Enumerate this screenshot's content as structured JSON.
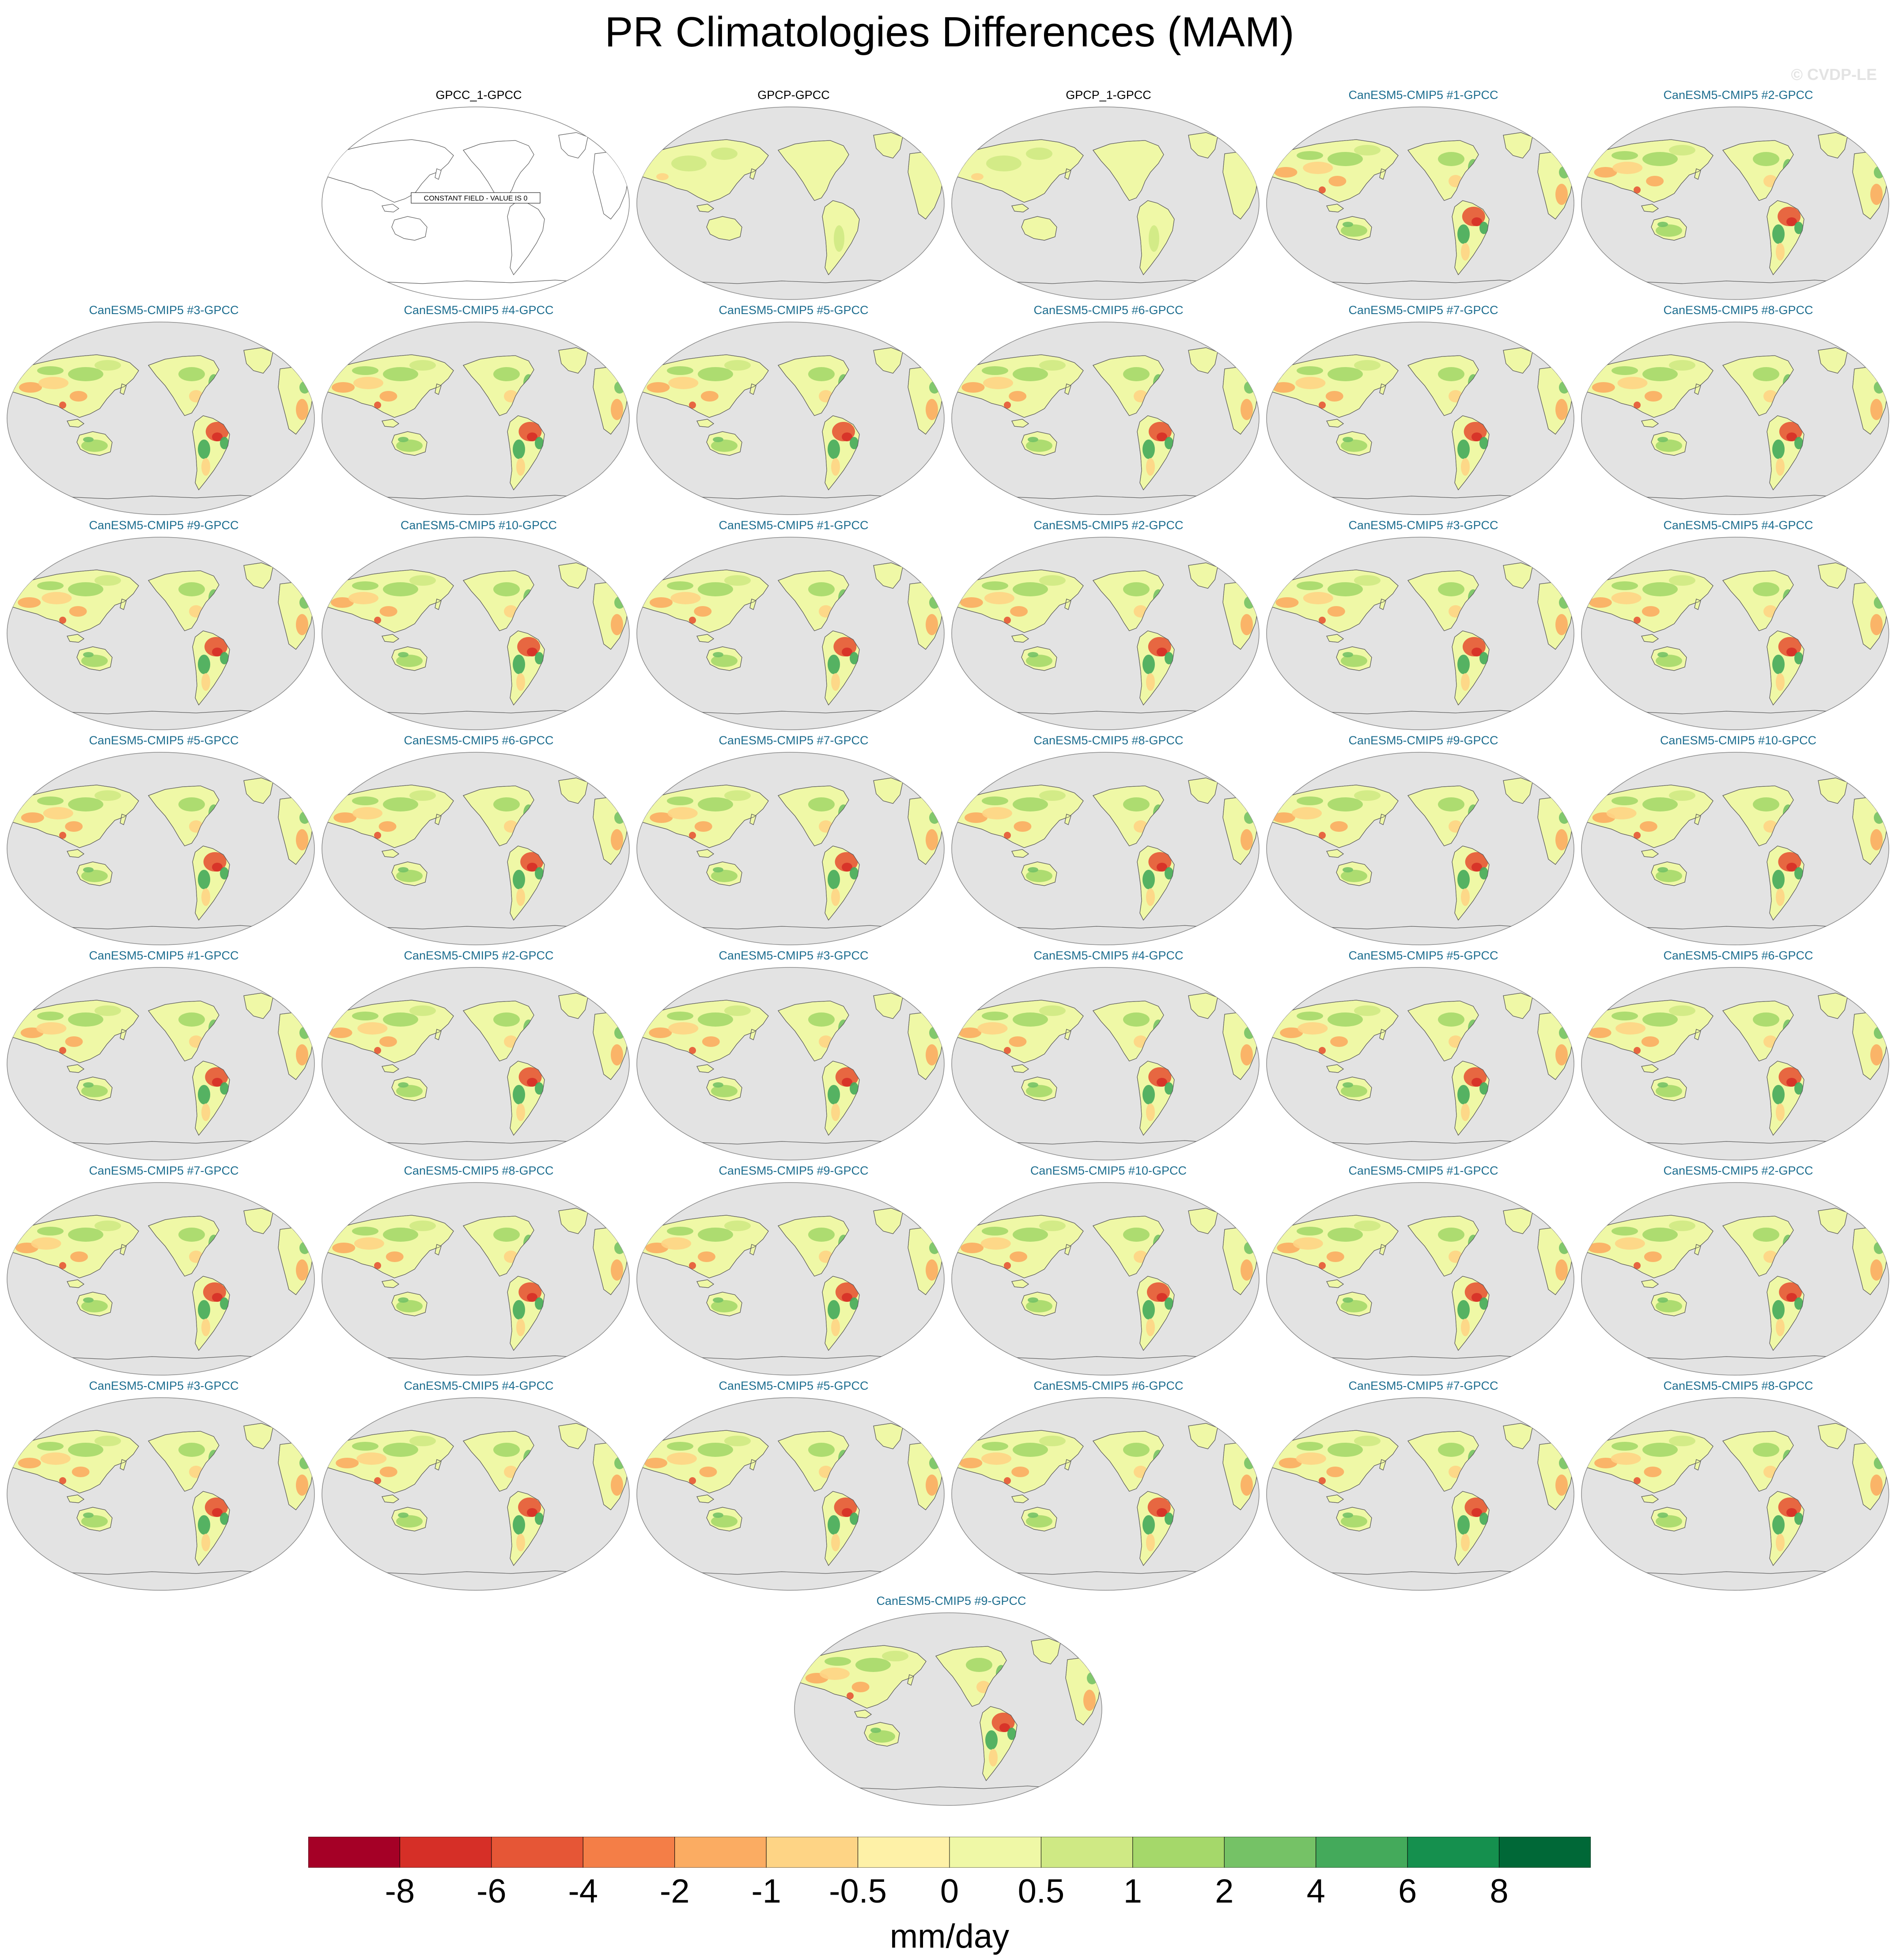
{
  "title": "PR Climatologies Differences (MAM)",
  "credit": "© CVDP-LE",
  "colors": {
    "obs_title": "#000000",
    "model_title": "#1c6d8f",
    "ocean": "#e3e3e3",
    "coast": "#5a5a5a"
  },
  "chart_data": {
    "type": "heatmap",
    "projection": "Robinson, Pacific-centered",
    "panels": [
      {
        "title": "GPCC_1-GPCC",
        "kind": "obs",
        "constant_note": "CONSTANT FIELD - VALUE IS 0"
      },
      {
        "title": "GPCP-GPCC",
        "kind": "obs"
      },
      {
        "title": "GPCP_1-GPCC",
        "kind": "obs"
      },
      {
        "title": "CanESM5-CMIP5 #1-GPCC",
        "kind": "model"
      },
      {
        "title": "CanESM5-CMIP5 #2-GPCC",
        "kind": "model"
      },
      {
        "title": "CanESM5-CMIP5 #3-GPCC",
        "kind": "model"
      },
      {
        "title": "CanESM5-CMIP5 #4-GPCC",
        "kind": "model"
      },
      {
        "title": "CanESM5-CMIP5 #5-GPCC",
        "kind": "model"
      },
      {
        "title": "CanESM5-CMIP5 #6-GPCC",
        "kind": "model"
      },
      {
        "title": "CanESM5-CMIP5 #7-GPCC",
        "kind": "model"
      },
      {
        "title": "CanESM5-CMIP5 #8-GPCC",
        "kind": "model"
      },
      {
        "title": "CanESM5-CMIP5 #9-GPCC",
        "kind": "model"
      },
      {
        "title": "CanESM5-CMIP5 #10-GPCC",
        "kind": "model"
      },
      {
        "title": "CanESM5-CMIP5 #1-GPCC",
        "kind": "model"
      },
      {
        "title": "CanESM5-CMIP5 #2-GPCC",
        "kind": "model"
      },
      {
        "title": "CanESM5-CMIP5 #3-GPCC",
        "kind": "model"
      },
      {
        "title": "CanESM5-CMIP5 #4-GPCC",
        "kind": "model"
      },
      {
        "title": "CanESM5-CMIP5 #5-GPCC",
        "kind": "model"
      },
      {
        "title": "CanESM5-CMIP5 #6-GPCC",
        "kind": "model"
      },
      {
        "title": "CanESM5-CMIP5 #7-GPCC",
        "kind": "model"
      },
      {
        "title": "CanESM5-CMIP5 #8-GPCC",
        "kind": "model"
      },
      {
        "title": "CanESM5-CMIP5 #9-GPCC",
        "kind": "model"
      },
      {
        "title": "CanESM5-CMIP5 #10-GPCC",
        "kind": "model"
      },
      {
        "title": "CanESM5-CMIP5 #1-GPCC",
        "kind": "model"
      },
      {
        "title": "CanESM5-CMIP5 #2-GPCC",
        "kind": "model"
      },
      {
        "title": "CanESM5-CMIP5 #3-GPCC",
        "kind": "model"
      },
      {
        "title": "CanESM5-CMIP5 #4-GPCC",
        "kind": "model"
      },
      {
        "title": "CanESM5-CMIP5 #5-GPCC",
        "kind": "model"
      },
      {
        "title": "CanESM5-CMIP5 #6-GPCC",
        "kind": "model"
      },
      {
        "title": "CanESM5-CMIP5 #7-GPCC",
        "kind": "model"
      },
      {
        "title": "CanESM5-CMIP5 #8-GPCC",
        "kind": "model"
      },
      {
        "title": "CanESM5-CMIP5 #9-GPCC",
        "kind": "model"
      },
      {
        "title": "CanESM5-CMIP5 #10-GPCC",
        "kind": "model"
      },
      {
        "title": "CanESM5-CMIP5 #1-GPCC",
        "kind": "model"
      },
      {
        "title": "CanESM5-CMIP5 #2-GPCC",
        "kind": "model"
      },
      {
        "title": "CanESM5-CMIP5 #3-GPCC",
        "kind": "model"
      },
      {
        "title": "CanESM5-CMIP5 #4-GPCC",
        "kind": "model"
      },
      {
        "title": "CanESM5-CMIP5 #5-GPCC",
        "kind": "model"
      },
      {
        "title": "CanESM5-CMIP5 #6-GPCC",
        "kind": "model"
      },
      {
        "title": "CanESM5-CMIP5 #7-GPCC",
        "kind": "model"
      },
      {
        "title": "CanESM5-CMIP5 #8-GPCC",
        "kind": "model"
      },
      {
        "title": "CanESM5-CMIP5 #9-GPCC",
        "kind": "model"
      }
    ],
    "colorbar": {
      "units": "mm/day",
      "tick_labels": [
        "-8",
        "-6",
        "-4",
        "-2",
        "-1",
        "-0.5",
        "0",
        "0.5",
        "1",
        "2",
        "4",
        "6",
        "8"
      ],
      "colors": [
        "#a50026",
        "#d62f27",
        "#e65636",
        "#f47e47",
        "#fbac62",
        "#fed485",
        "#fef1a7",
        "#eff8a6",
        "#cfe984",
        "#a5d86a",
        "#75c266",
        "#44aa5b",
        "#15904e",
        "#006837"
      ]
    }
  }
}
